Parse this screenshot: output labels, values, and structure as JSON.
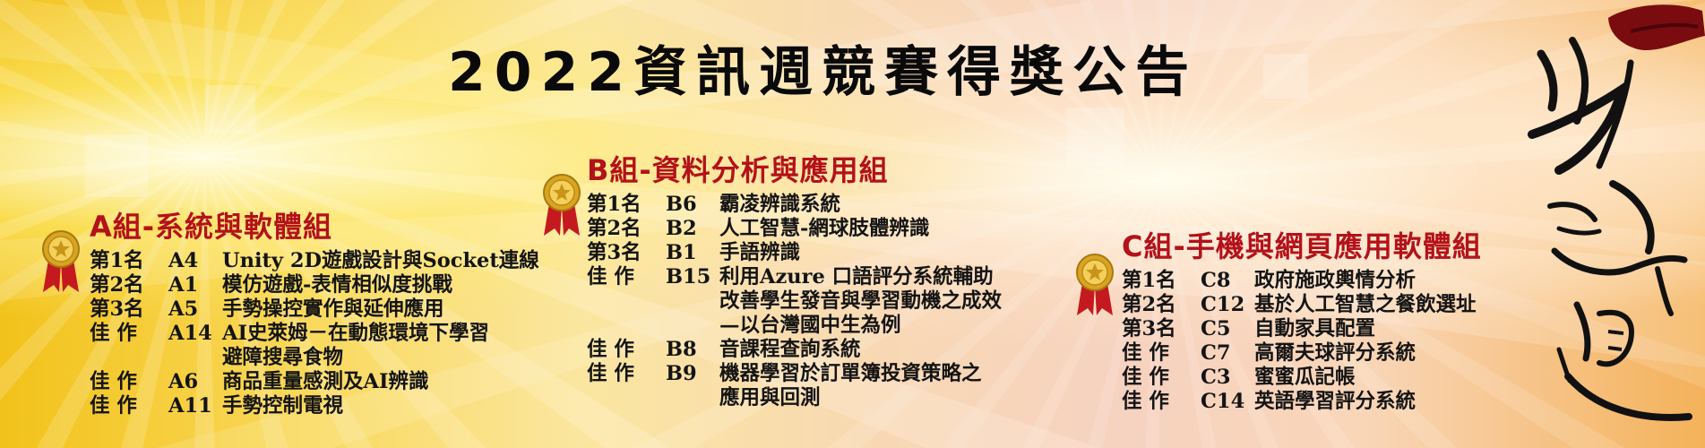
{
  "title": "2022資訊週競賽得獎公告",
  "groups": {
    "a": {
      "title": "A組-系統與軟體組",
      "entries": [
        {
          "rank": "第1名",
          "code": "A4",
          "name": "Unity 2D遊戲設計與Socket連線"
        },
        {
          "rank": "第2名",
          "code": "A1",
          "name": "模仿遊戲-表情相似度挑戰"
        },
        {
          "rank": "第3名",
          "code": "A5",
          "name": "手勢操控實作與延伸應用"
        },
        {
          "rank": "佳 作",
          "code": "A14",
          "name": "AI史萊姆－在動態環境下學習\n避障搜尋食物"
        },
        {
          "rank": "佳 作",
          "code": "A6",
          "name": "商品重量感測及AI辨識"
        },
        {
          "rank": "佳 作",
          "code": "A11",
          "name": "手勢控制電視"
        }
      ]
    },
    "b": {
      "title": "B組-資料分析與應用組",
      "entries": [
        {
          "rank": "第1名",
          "code": "B6",
          "name": "霸凌辨識系統"
        },
        {
          "rank": "第2名",
          "code": "B2",
          "name": "人工智慧-網球肢體辨識"
        },
        {
          "rank": "第3名",
          "code": "B1",
          "name": "手語辨識"
        },
        {
          "rank": "佳 作",
          "code": "B15",
          "name": "利用Azure 口語評分系統輔助\n改善學生發音與學習動機之成效\n—以台灣國中生為例"
        },
        {
          "rank": "佳 作",
          "code": "B8",
          "name": "音課程查詢系統"
        },
        {
          "rank": "佳 作",
          "code": "B9",
          "name": "機器學習於訂單簿投資策略之\n應用與回測"
        }
      ]
    },
    "c": {
      "title": "C組-手機與網頁應用軟體組",
      "entries": [
        {
          "rank": "第1名",
          "code": "C8",
          "name": "政府施政輿情分析"
        },
        {
          "rank": "第2名",
          "code": "C12",
          "name": "基於人工智慧之餐飲選址"
        },
        {
          "rank": "第3名",
          "code": "C5",
          "name": "自動家具配置"
        },
        {
          "rank": "佳 作",
          "code": "C7",
          "name": "高爾夫球評分系統"
        },
        {
          "rank": "佳 作",
          "code": "C3",
          "name": "蜜蜜瓜記帳"
        },
        {
          "rank": "佳 作",
          "code": "C14",
          "name": "英語學習評分系統"
        }
      ]
    }
  },
  "calligraphy": {
    "characters": [
      "資",
      "訊",
      "週"
    ]
  },
  "colors": {
    "group_title": "#b3121a",
    "text": "#141414",
    "medal_gold": "#d9a521",
    "ribbon": "#c41a1f"
  }
}
